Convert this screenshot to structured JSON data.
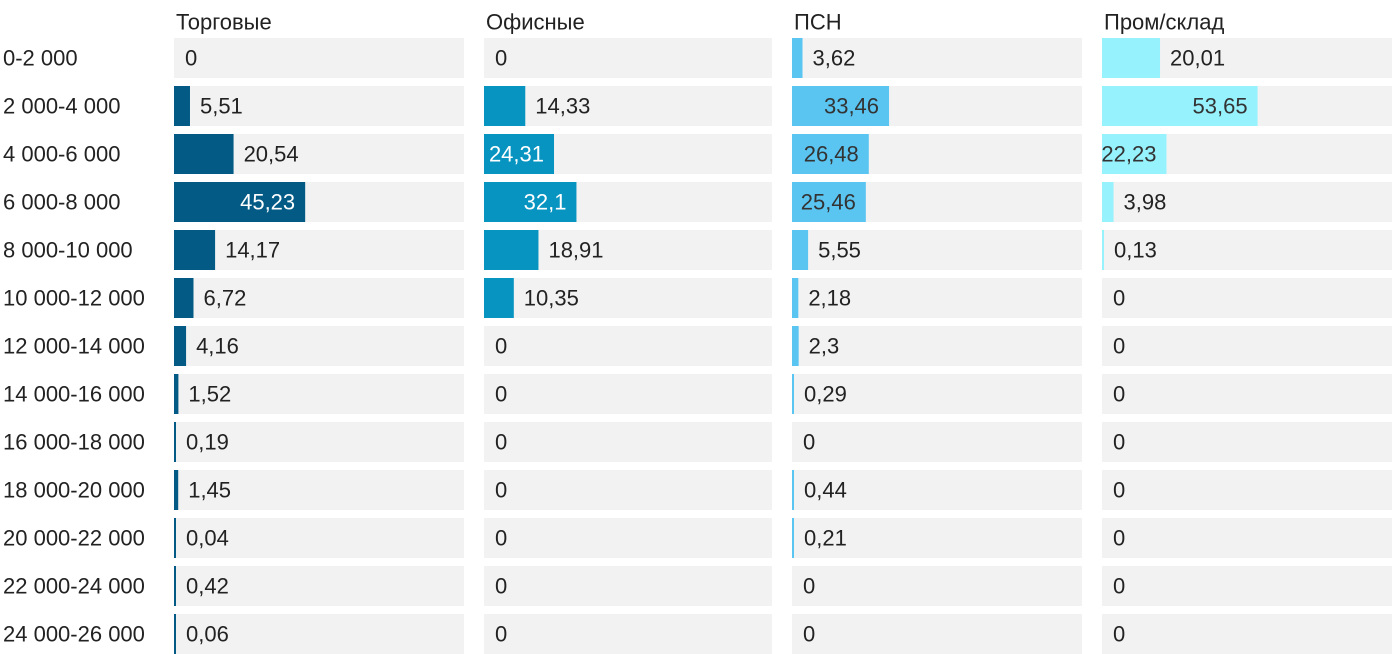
{
  "chart_data": {
    "type": "bar",
    "orientation": "horizontal",
    "layout": "small-multiples",
    "title": "",
    "xlabel": "",
    "ylabel": "",
    "xlim": [
      0,
      100
    ],
    "grid": false,
    "legend": "none",
    "background_color": "#f2f2f2",
    "categories": [
      "0-2 000",
      "2 000-4 000",
      "4 000-6 000",
      "6 000-8 000",
      "8 000-10 000",
      "10 000-12 000",
      "12 000-14 000",
      "14 000-16 000",
      "16 000-18 000",
      "18 000-20 000",
      "20 000-22 000",
      "22 000-24 000",
      "24 000-26 000"
    ],
    "series": [
      {
        "name": "Торговые",
        "color": "#025a85",
        "values": [
          0,
          5.51,
          20.54,
          45.23,
          14.17,
          6.72,
          4.16,
          1.52,
          0.19,
          1.45,
          0.04,
          0.42,
          0.06
        ],
        "labels": [
          "0",
          "5,51",
          "20,54",
          "45,23",
          "14,17",
          "6,72",
          "4,16",
          "1,52",
          "0,19",
          "1,45",
          "0,04",
          "0,42",
          "0,06"
        ]
      },
      {
        "name": "Офисные",
        "color": "#0894c1",
        "values": [
          0,
          14.33,
          24.31,
          32.1,
          18.91,
          10.35,
          0,
          0,
          0,
          0,
          0,
          0,
          0
        ],
        "labels": [
          "0",
          "14,33",
          "24,31",
          "32,1",
          "18,91",
          "10,35",
          "0",
          "0",
          "0",
          "0",
          "0",
          "0",
          "0"
        ]
      },
      {
        "name": "ПСН",
        "color": "#5bc5f2",
        "values": [
          3.62,
          33.46,
          26.48,
          25.46,
          5.55,
          2.18,
          2.3,
          0.29,
          0,
          0.44,
          0.21,
          0,
          0
        ],
        "labels": [
          "3,62",
          "33,46",
          "26,48",
          "25,46",
          "5,55",
          "2,18",
          "2,3",
          "0,29",
          "0",
          "0,44",
          "0,21",
          "0",
          "0"
        ]
      },
      {
        "name": "Пром/склад",
        "color": "#96f2fd",
        "values": [
          20.01,
          53.65,
          22.23,
          3.98,
          0.13,
          0,
          0,
          0,
          0,
          0,
          0,
          0,
          0
        ],
        "labels": [
          "20,01",
          "53,65",
          "22,23",
          "3,98",
          "0,13",
          "0",
          "0",
          "0",
          "0",
          "0",
          "0",
          "0",
          "0"
        ]
      }
    ]
  }
}
